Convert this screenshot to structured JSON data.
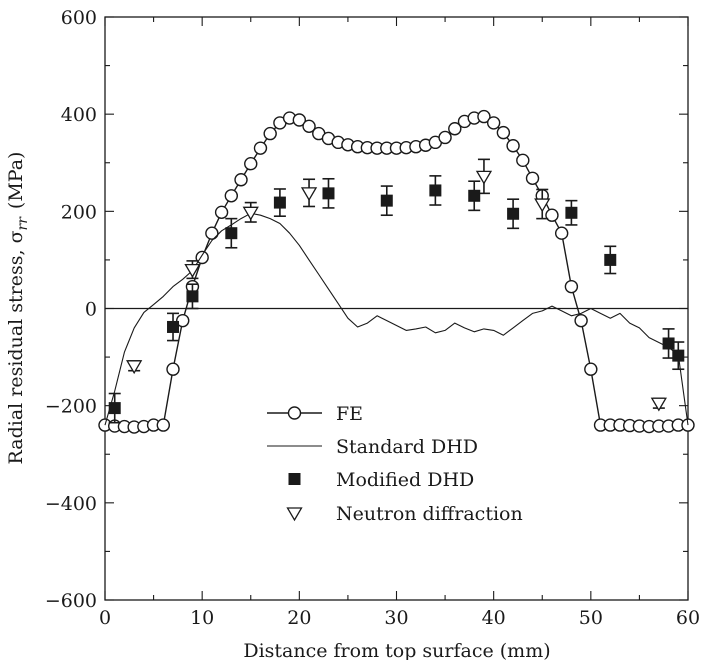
{
  "chart_data": {
    "type": "scatter",
    "title": "",
    "xlabel": "Distance from top surface (mm)",
    "ylabel": "Radial residual stress, σ",
    "ylabel_sub": "rr",
    "ylabel_unit": "(MPa)",
    "xlim": [
      0,
      60
    ],
    "ylim": [
      -600,
      600
    ],
    "xticks": [
      0,
      10,
      20,
      30,
      40,
      50,
      60
    ],
    "yticks": [
      -600,
      -400,
      -200,
      0,
      200,
      400,
      600
    ],
    "xtick_labels": [
      "0",
      "10",
      "20",
      "30",
      "40",
      "50",
      "60"
    ],
    "ytick_labels": [
      "−600",
      "−400",
      "−200",
      "0",
      "200",
      "400",
      "600"
    ],
    "zero_line": true,
    "grid": false,
    "legend_position": "lower-center",
    "series": [
      {
        "name": "FE",
        "style": "line-open-circle",
        "x": [
          0,
          1,
          2,
          3,
          4,
          5,
          6,
          7,
          8,
          9,
          10,
          11,
          12,
          13,
          14,
          15,
          16,
          17,
          18,
          19,
          20,
          21,
          22,
          23,
          24,
          25,
          26,
          27,
          28,
          29,
          30,
          31,
          32,
          33,
          34,
          35,
          36,
          37,
          38,
          39,
          40,
          41,
          42,
          43,
          44,
          45,
          46,
          47,
          48,
          49,
          50,
          51,
          52,
          53,
          54,
          55,
          56,
          57,
          58,
          59,
          60
        ],
        "y": [
          -240,
          -242,
          -243,
          -244,
          -243,
          -240,
          -240,
          -125,
          -25,
          45,
          105,
          155,
          198,
          232,
          265,
          298,
          330,
          360,
          382,
          392,
          388,
          375,
          360,
          350,
          342,
          337,
          333,
          331,
          330,
          330,
          330,
          331,
          333,
          336,
          342,
          352,
          370,
          385,
          392,
          395,
          382,
          362,
          335,
          305,
          268,
          232,
          192,
          155,
          45,
          -25,
          -125,
          -240,
          -240,
          -240,
          -241,
          -242,
          -243,
          -242,
          -242,
          -240,
          -240
        ]
      },
      {
        "name": "Standard DHD",
        "style": "line",
        "x": [
          0,
          1,
          2,
          3,
          4,
          5,
          6,
          7,
          8,
          9,
          10,
          11,
          12,
          13,
          14,
          15,
          16,
          17,
          18,
          19,
          20,
          21,
          22,
          23,
          24,
          25,
          26,
          27,
          28,
          29,
          30,
          31,
          32,
          33,
          34,
          35,
          36,
          37,
          38,
          39,
          40,
          41,
          42,
          43,
          44,
          45,
          46,
          47,
          48,
          49,
          50,
          51,
          52,
          53,
          54,
          55,
          56,
          57,
          58,
          59,
          60
        ],
        "y": [
          -240,
          -170,
          -90,
          -40,
          -8,
          8,
          25,
          45,
          60,
          78,
          110,
          140,
          160,
          172,
          185,
          196,
          192,
          185,
          175,
          155,
          130,
          100,
          70,
          40,
          10,
          -20,
          -38,
          -30,
          -15,
          -25,
          -35,
          -45,
          -42,
          -38,
          -50,
          -45,
          -30,
          -40,
          -48,
          -42,
          -45,
          -55,
          -40,
          -25,
          -10,
          -5,
          5,
          -5,
          -15,
          -10,
          0,
          -10,
          -20,
          -10,
          -30,
          -40,
          -60,
          -70,
          -80,
          -95,
          -240
        ]
      },
      {
        "name": "Modified DHD",
        "style": "filled-square-errorbar",
        "x": [
          1,
          7,
          9,
          13,
          18,
          23,
          29,
          34,
          38,
          42,
          48,
          52,
          58,
          59
        ],
        "y": [
          -205,
          -38,
          25,
          155,
          218,
          237,
          222,
          243,
          232,
          195,
          197,
          100,
          -72,
          -97
        ],
        "err": [
          30,
          28,
          25,
          30,
          28,
          30,
          30,
          30,
          30,
          30,
          25,
          28,
          30,
          28
        ]
      },
      {
        "name": "Neutron diffraction",
        "style": "open-down-triangle-errorbar",
        "x": [
          3,
          9,
          15,
          21,
          39,
          45,
          57
        ],
        "y": [
          -118,
          80,
          198,
          238,
          272,
          215,
          -195
        ],
        "err": [
          10,
          18,
          20,
          28,
          35,
          30,
          10
        ]
      }
    ]
  }
}
